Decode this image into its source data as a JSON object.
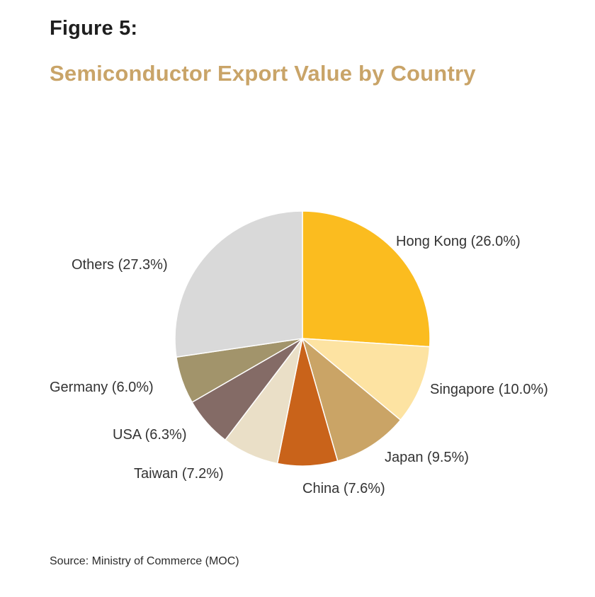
{
  "header": {
    "figure_number": "Figure 5:",
    "title": "Semiconductor Export Value by Country"
  },
  "chart_data": {
    "type": "pie",
    "title": "Semiconductor Export Value by Country",
    "unit": "%",
    "start_angle_deg": 0,
    "direction": "clockwise",
    "slices": [
      {
        "name": "Hong Kong",
        "value": 26.0,
        "label": "Hong Kong (26.0%)",
        "color": "#fbbc1f"
      },
      {
        "name": "Singapore",
        "value": 10.0,
        "label": "Singapore (10.0%)",
        "color": "#fde3a2"
      },
      {
        "name": "Japan",
        "value": 9.5,
        "label": "Japan (9.5%)",
        "color": "#caa466"
      },
      {
        "name": "China",
        "value": 7.6,
        "label": "China (7.6%)",
        "color": "#c9631a"
      },
      {
        "name": "Taiwan",
        "value": 7.2,
        "label": "Taiwan (7.2%)",
        "color": "#eadfc7"
      },
      {
        "name": "USA",
        "value": 6.3,
        "label": "USA (6.3%)",
        "color": "#846b66"
      },
      {
        "name": "Germany",
        "value": 6.0,
        "label": "Germany (6.0%)",
        "color": "#a2946b"
      },
      {
        "name": "Others",
        "value": 27.3,
        "label": "Others (27.3%)",
        "color": "#d9d9d9"
      }
    ]
  },
  "footer": {
    "source": "Source: Ministry of Commerce (MOC)"
  }
}
